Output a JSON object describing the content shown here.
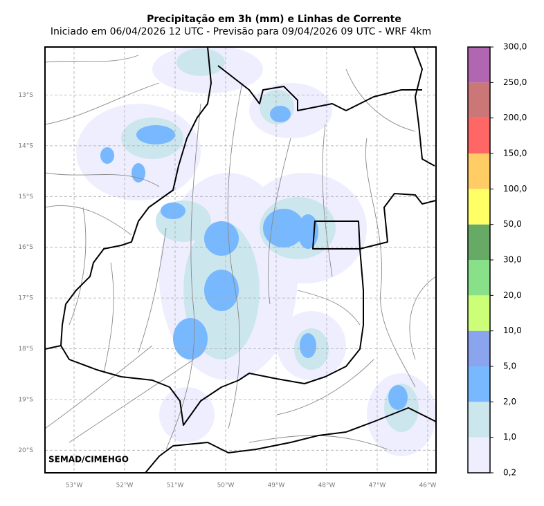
{
  "title": "Precipitação em 3h (mm) e Linhas de Corrente",
  "subtitle": "Iniciado em 06/04/2026 12 UTC - Previsão para 09/04/2026 09 UTC - WRF 4km",
  "credit": "SEMAD/CIMEHGO",
  "latitude_labels": [
    "13°S",
    "14°S",
    "15°S",
    "16°S",
    "17°S",
    "18°S",
    "19°S",
    "20°S"
  ],
  "longitude_labels": [
    "53°W",
    "52°W",
    "51°W",
    "50°W",
    "49°W",
    "48°W",
    "47°W",
    "46°W"
  ],
  "colorbar": {
    "levels": [
      "0,2",
      "1,0",
      "2,0",
      "5,0",
      "10,0",
      "20,0",
      "30,0",
      "50,0",
      "100,0",
      "150,0",
      "200,0",
      "250,0",
      "300,0"
    ],
    "colors": [
      "#eeeeff",
      "#cce6ee",
      "#77b8ff",
      "#8aa4ee",
      "#ccff77",
      "#88e088",
      "#66aa66",
      "#ffff66",
      "#ffcc66",
      "#ff6666",
      "#cc7777",
      "#b066b0"
    ]
  }
}
